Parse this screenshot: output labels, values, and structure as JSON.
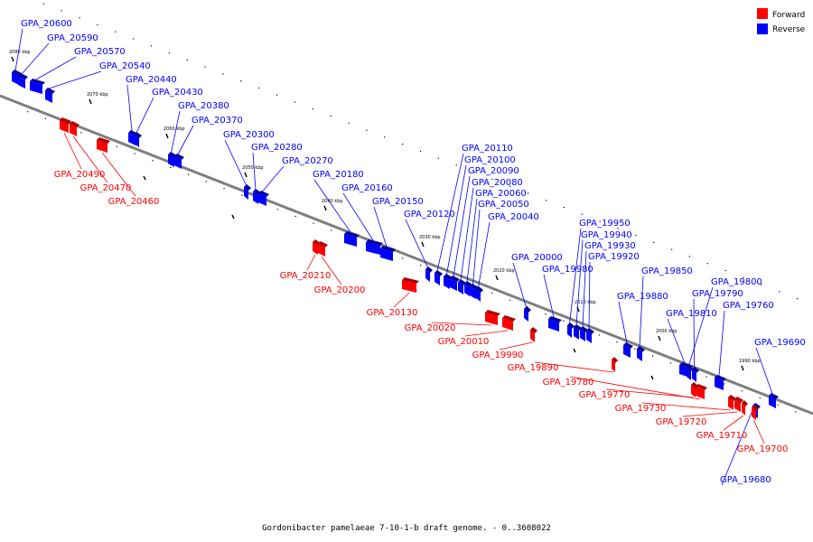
{
  "caption": "Gordonibacter pamelaeae 7-10-1-b draft genome. - 0..3608022",
  "legend": [
    {
      "label": "Forward",
      "color": "#ff0000"
    },
    {
      "label": "Reverse",
      "color": "#0000ff"
    }
  ],
  "colors": {
    "forward": "#ff0000",
    "reverse": "#0000ff",
    "backbone": "#7f7f7f"
  },
  "ticks": [
    "2080 kbp",
    "2070 kbp",
    "2060 kbp",
    "2050 kbp",
    "2040 kbp",
    "2030 kbp",
    "2020 kbp",
    "2010 kbp",
    "2000 kbp",
    "1990 kbp"
  ],
  "genes": [
    {
      "name": "GPA_20600",
      "strand": "reverse"
    },
    {
      "name": "GPA_20590",
      "strand": "reverse"
    },
    {
      "name": "GPA_20570",
      "strand": "reverse"
    },
    {
      "name": "GPA_20540",
      "strand": "reverse"
    },
    {
      "name": "GPA_20440",
      "strand": "reverse"
    },
    {
      "name": "GPA_20430",
      "strand": "reverse"
    },
    {
      "name": "GPA_20380",
      "strand": "reverse"
    },
    {
      "name": "GPA_20370",
      "strand": "reverse"
    },
    {
      "name": "GPA_20300",
      "strand": "reverse"
    },
    {
      "name": "GPA_20280",
      "strand": "reverse"
    },
    {
      "name": "GPA_20270",
      "strand": "reverse"
    },
    {
      "name": "GPA_20180",
      "strand": "reverse"
    },
    {
      "name": "GPA_20160",
      "strand": "reverse"
    },
    {
      "name": "GPA_20150",
      "strand": "reverse"
    },
    {
      "name": "GPA_20120",
      "strand": "reverse"
    },
    {
      "name": "GPA_20110",
      "strand": "reverse"
    },
    {
      "name": "GPA_20100",
      "strand": "reverse"
    },
    {
      "name": "GPA_20090",
      "strand": "reverse"
    },
    {
      "name": "GPA_20080",
      "strand": "reverse"
    },
    {
      "name": "GPA_20060",
      "strand": "reverse"
    },
    {
      "name": "GPA_20050",
      "strand": "reverse"
    },
    {
      "name": "GPA_20040",
      "strand": "reverse"
    },
    {
      "name": "GPA_20000",
      "strand": "reverse"
    },
    {
      "name": "GPA_19980",
      "strand": "reverse"
    },
    {
      "name": "GPA_19950",
      "strand": "reverse"
    },
    {
      "name": "GPA_19940",
      "strand": "reverse"
    },
    {
      "name": "GPA_19930",
      "strand": "reverse"
    },
    {
      "name": "GPA_19920",
      "strand": "reverse"
    },
    {
      "name": "GPA_19880",
      "strand": "reverse"
    },
    {
      "name": "GPA_19850",
      "strand": "reverse"
    },
    {
      "name": "GPA_19810",
      "strand": "reverse"
    },
    {
      "name": "GPA_19800",
      "strand": "reverse"
    },
    {
      "name": "GPA_19790",
      "strand": "reverse"
    },
    {
      "name": "GPA_19760",
      "strand": "reverse"
    },
    {
      "name": "GPA_19690",
      "strand": "reverse"
    },
    {
      "name": "GPA_19680",
      "strand": "reverse"
    },
    {
      "name": "GPA_20490",
      "strand": "forward"
    },
    {
      "name": "GPA_20470",
      "strand": "forward"
    },
    {
      "name": "GPA_20460",
      "strand": "forward"
    },
    {
      "name": "GPA_20210",
      "strand": "forward"
    },
    {
      "name": "GPA_20200",
      "strand": "forward"
    },
    {
      "name": "GPA_20130",
      "strand": "forward"
    },
    {
      "name": "GPA_20020",
      "strand": "forward"
    },
    {
      "name": "GPA_20010",
      "strand": "forward"
    },
    {
      "name": "GPA_19990",
      "strand": "forward"
    },
    {
      "name": "GPA_19890",
      "strand": "forward"
    },
    {
      "name": "GPA_19780",
      "strand": "forward"
    },
    {
      "name": "GPA_19770",
      "strand": "forward"
    },
    {
      "name": "GPA_19730",
      "strand": "forward"
    },
    {
      "name": "GPA_19720",
      "strand": "forward"
    },
    {
      "name": "GPA_19710",
      "strand": "forward"
    },
    {
      "name": "GPA_19700",
      "strand": "forward"
    }
  ]
}
